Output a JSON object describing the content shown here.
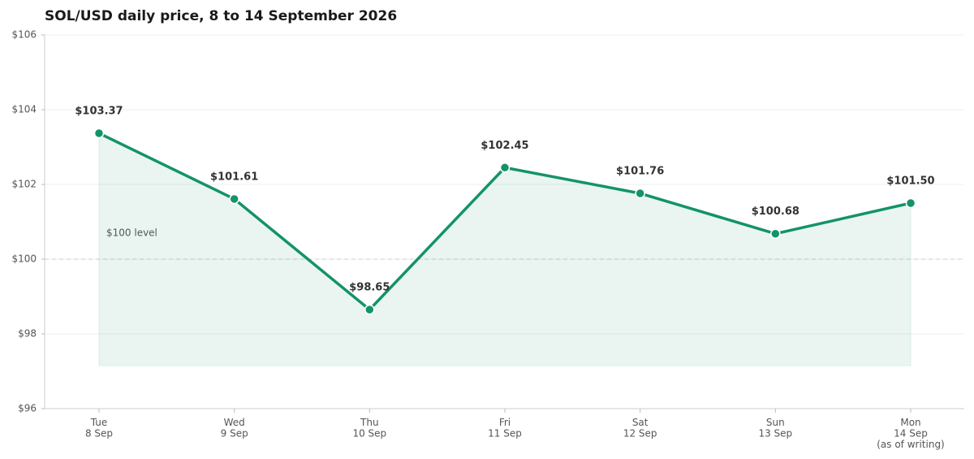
{
  "chart_data": {
    "type": "line",
    "title": "SOL/USD daily price, 8 to 14 September 2026",
    "categories": [
      [
        "Tue",
        "8 Sep"
      ],
      [
        "Wed",
        "9 Sep"
      ],
      [
        "Thu",
        "10 Sep"
      ],
      [
        "Fri",
        "11 Sep"
      ],
      [
        "Sat",
        "12 Sep"
      ],
      [
        "Sun",
        "13 Sep"
      ],
      [
        "Mon",
        "14 Sep",
        "(as of writing)"
      ]
    ],
    "values": [
      103.37,
      101.61,
      98.65,
      102.45,
      101.76,
      100.68,
      101.5
    ],
    "value_labels": [
      "$103.37",
      "$101.61",
      "$98.65",
      "$102.45",
      "$101.76",
      "$100.68",
      "$101.50"
    ],
    "color": "#13936a",
    "ylim": [
      96,
      106
    ],
    "yticks": [
      {
        "value": 96,
        "label": "$96"
      },
      {
        "value": 98,
        "label": "$98"
      },
      {
        "value": 100,
        "label": "$100"
      },
      {
        "value": 102,
        "label": "$102"
      },
      {
        "value": 104,
        "label": "$104"
      },
      {
        "value": 106,
        "label": "$106"
      }
    ],
    "grid": true,
    "reference_line": {
      "value": 100,
      "label": "$100 level"
    }
  }
}
